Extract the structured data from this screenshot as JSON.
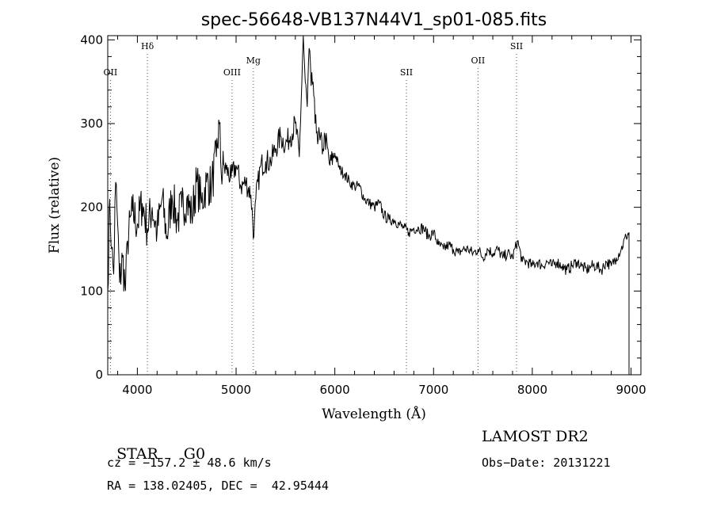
{
  "chart_data": {
    "type": "line",
    "title": "spec-56648-VB137N44V1_sp01-085.fits",
    "xlabel": "Wavelength (Å)",
    "ylabel": "Flux (relative)",
    "xlim": [
      3700,
      9100
    ],
    "ylim": [
      0,
      405
    ],
    "xticks": [
      "4000",
      "5000",
      "6000",
      "7000",
      "8000",
      "9000"
    ],
    "yticks": [
      "0",
      "100",
      "200",
      "300",
      "400"
    ],
    "series": [
      {
        "x": [
          3700,
          3720,
          3740,
          3760,
          3780,
          3800,
          3820,
          3850,
          3880,
          3900,
          3950,
          4000,
          4050,
          4100,
          4150,
          4200,
          4250,
          4300,
          4350,
          4400,
          4450,
          4500,
          4550,
          4600,
          4650,
          4700,
          4750,
          4800,
          4830,
          4850,
          4880,
          4900,
          4950,
          5000,
          5050,
          5100,
          5150,
          5180,
          5200,
          5250,
          5300,
          5350,
          5400,
          5450,
          5500,
          5550,
          5600,
          5640,
          5660,
          5680,
          5700,
          5720,
          5740,
          5760,
          5780,
          5800,
          5820,
          5850,
          5880,
          5900,
          5950,
          6000,
          6050,
          6100,
          6150,
          6200,
          6250,
          6300,
          6350,
          6400,
          6450,
          6500,
          6550,
          6600,
          6650,
          6700,
          6750,
          6800,
          6850,
          6900,
          6950,
          7000,
          7050,
          7100,
          7150,
          7200,
          7250,
          7300,
          7350,
          7400,
          7450,
          7500,
          7550,
          7600,
          7650,
          7700,
          7750,
          7800,
          7850,
          7900,
          7950,
          8000,
          8050,
          8100,
          8150,
          8200,
          8250,
          8300,
          8350,
          8400,
          8450,
          8500,
          8550,
          8600,
          8650,
          8700,
          8750,
          8800,
          8850,
          8900,
          8950,
          8980
        ],
        "y": [
          100,
          210,
          150,
          120,
          230,
          180,
          110,
          140,
          100,
          160,
          195,
          180,
          205,
          175,
          200,
          170,
          210,
          165,
          215,
          185,
          200,
          210,
          190,
          230,
          205,
          230,
          225,
          260,
          300,
          240,
          250,
          245,
          235,
          250,
          225,
          230,
          215,
          165,
          210,
          250,
          255,
          255,
          270,
          285,
          275,
          285,
          300,
          260,
          330,
          405,
          350,
          320,
          390,
          345,
          350,
          300,
          290,
          280,
          270,
          285,
          250,
          265,
          245,
          240,
          230,
          225,
          225,
          210,
          205,
          200,
          205,
          190,
          185,
          185,
          180,
          175,
          170,
          175,
          175,
          175,
          165,
          170,
          155,
          150,
          155,
          150,
          145,
          150,
          150,
          145,
          150,
          140,
          150,
          145,
          150,
          140,
          145,
          140,
          160,
          135,
          135,
          130,
          135,
          130,
          135,
          130,
          135,
          130,
          125,
          130,
          135,
          130,
          125,
          130,
          130,
          125,
          135,
          130,
          140,
          150,
          165,
          170
        ]
      }
    ],
    "lines": [
      {
        "label": "OII",
        "x": 3727,
        "level": "low"
      },
      {
        "label": "Hδ",
        "x": 4102,
        "level": "high"
      },
      {
        "label": "OIII",
        "x": 4959,
        "level": "low"
      },
      {
        "label": "Mg",
        "x": 5175,
        "level": "mid"
      },
      {
        "label": "SII",
        "x": 6725,
        "level": "low"
      },
      {
        "label": "OII",
        "x": 7450,
        "level": "mid"
      },
      {
        "label": "SII",
        "x": 7840,
        "level": "high"
      }
    ]
  },
  "info": {
    "class": "STAR",
    "subclass": "G0",
    "survey": "LAMOST DR2",
    "cz": "cz = −157.2 ± 48.6 km/s",
    "obsdate": "Obs−Date: 20131221",
    "radec": "RA = 138.02405, DEC =  42.95444"
  }
}
